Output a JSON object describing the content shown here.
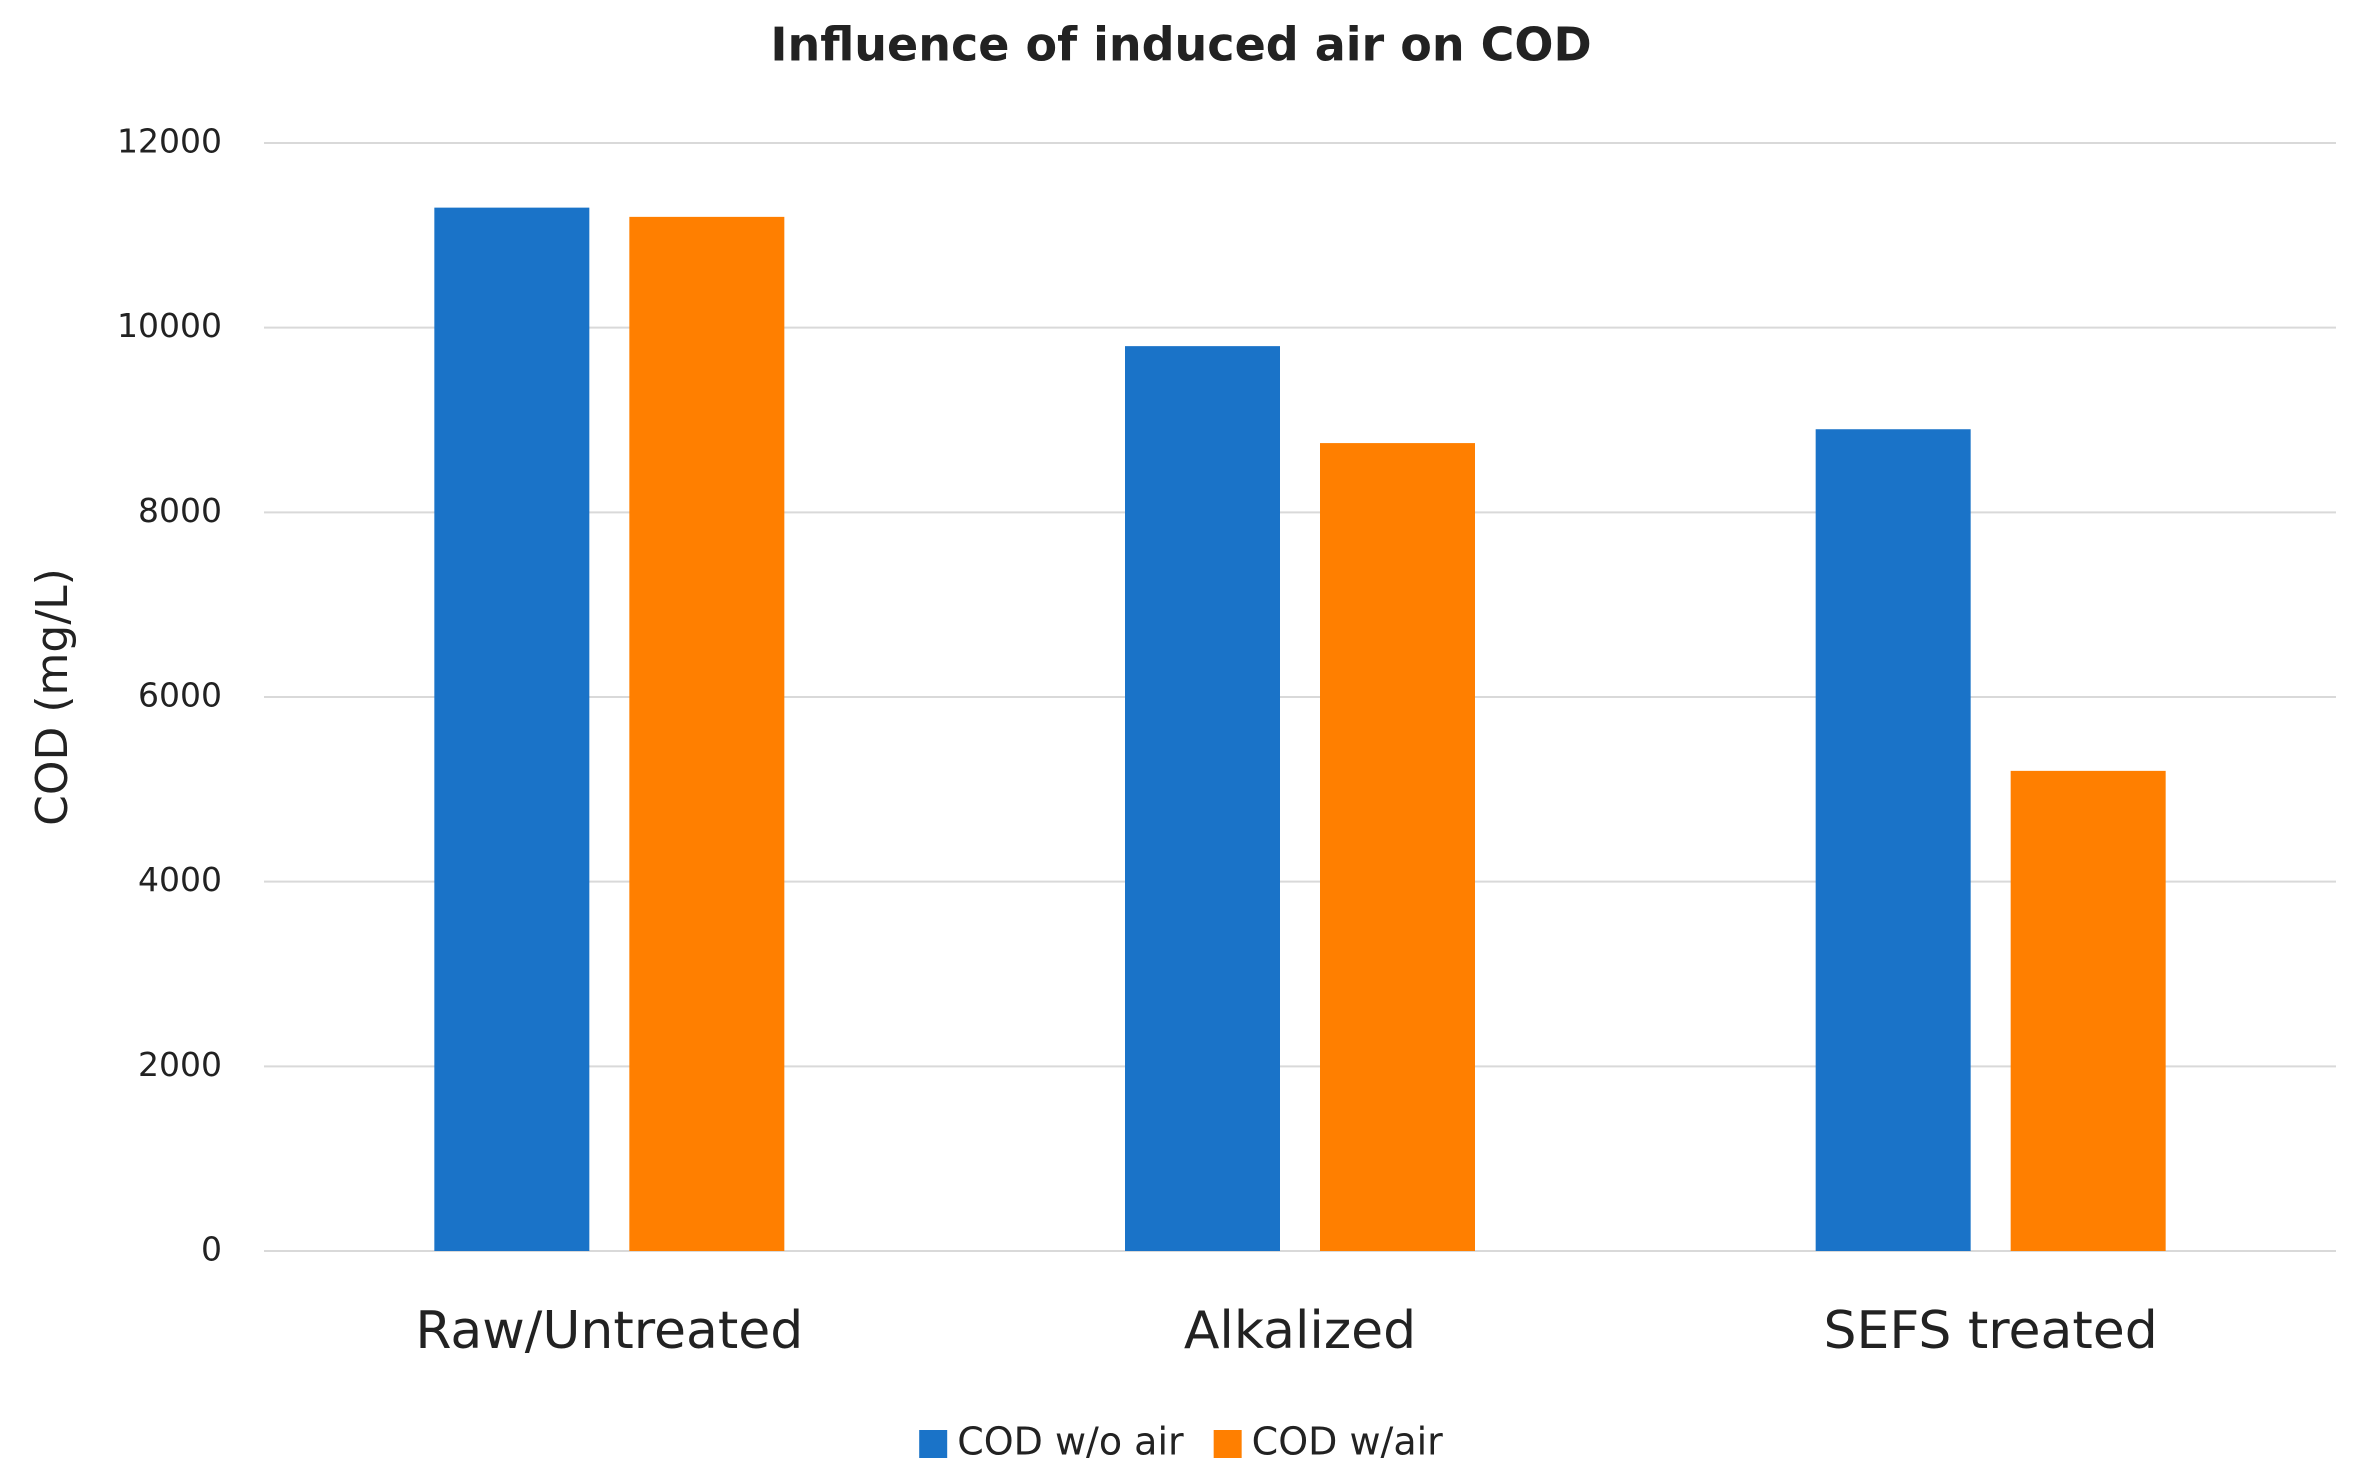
{
  "chart_data": {
    "type": "bar",
    "title": "Influence of induced air on COD",
    "y_label": "COD (mg/L)",
    "categories": [
      "Raw/Untreated",
      "Alkalized",
      "SEFS treated"
    ],
    "series": [
      {
        "name": "COD w/o air",
        "color": "#1a73c8",
        "values": [
          11300,
          9800,
          8900
        ]
      },
      {
        "name": "COD w/air",
        "color": "#ff7f00",
        "values": [
          11200,
          8750,
          5200
        ]
      }
    ],
    "ylim": [
      0,
      12000
    ],
    "yticks": [
      0,
      2000,
      4000,
      6000,
      8000,
      10000,
      12000
    ],
    "grid": true,
    "legend": "bottom"
  }
}
